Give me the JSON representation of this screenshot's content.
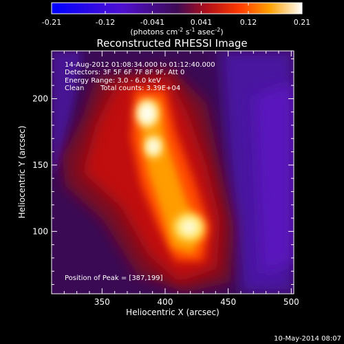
{
  "colorbar": {
    "ticks": [
      "-0.21",
      "-0.12",
      "-0.041",
      "0.041",
      "0.12",
      "0.21"
    ],
    "unit_main": "(photons cm",
    "unit_exp1": "-2",
    "unit_mid": " s",
    "unit_exp2": "-1",
    "unit_mid2": " asec",
    "unit_exp3": "-2",
    "unit_end": ")",
    "min": -0.21,
    "max": 0.21
  },
  "header": {
    "title": "Reconstructed RHESSI Image"
  },
  "annotations": {
    "time_range": "14-Aug-2012 01:08:34.000 to 01:12:40.000",
    "detectors": "Detectors: 3F 5F 6F 7F 8F 9F, Att 0",
    "energy": "Energy Range: 3.0 - 6.0 keV",
    "method": "Clean",
    "counts": "Total counts: 3.39E+04",
    "peak": "Position of Peak = [387,199]"
  },
  "footer": {
    "date": "10-May-2014 08:07"
  },
  "chart_data": {
    "type": "heatmap",
    "title": "Reconstructed RHESSI Image",
    "xlabel": "Heliocentric X (arcsec)",
    "ylabel": "Heliocentric Y (arcsec)",
    "xlim": [
      310,
      502
    ],
    "ylim": [
      53,
      236
    ],
    "x_ticks": [
      "350",
      "400",
      "450",
      "500"
    ],
    "y_ticks": [
      "100",
      "150",
      "200"
    ],
    "colorscale": "red-temperature (blue negative, purple zero, white maximum)",
    "peak_position": [
      387,
      199
    ],
    "sources": [
      {
        "x": 387,
        "y": 199,
        "intensity": 0.21
      },
      {
        "x": 391,
        "y": 172,
        "intensity": 0.2
      },
      {
        "x": 420,
        "y": 110,
        "intensity": 0.2
      }
    ]
  }
}
